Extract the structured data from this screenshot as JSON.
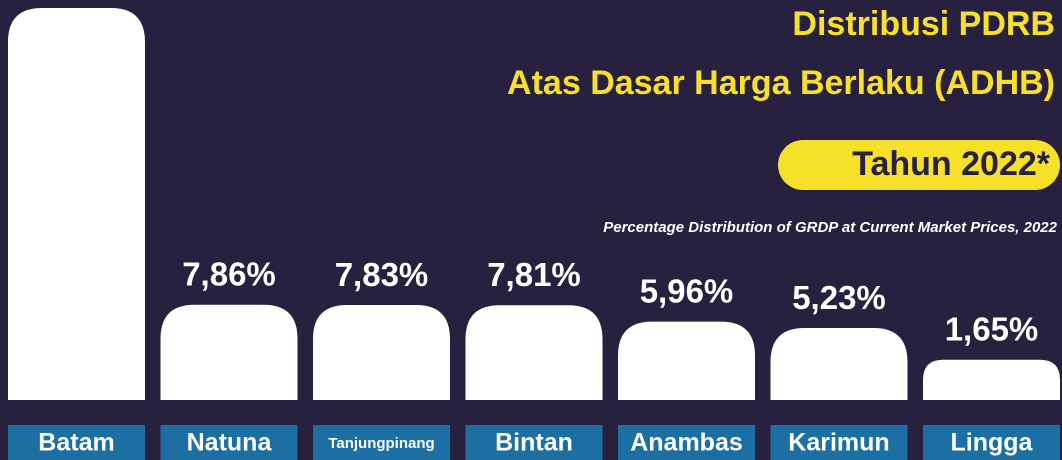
{
  "chart_data": {
    "type": "bar",
    "title": "Distribusi PDRB",
    "subtitle_line": "Atas Dasar Harga Berlaku (ADHB)",
    "year_badge": "Tahun 2022*",
    "subtitle": "Percentage Distribution of GRDP at Current Market Prices, 2022",
    "categories": [
      "Batam",
      "Natuna",
      "Tanjungpinang",
      "Bintan",
      "Anambas",
      "Karimun",
      "Lingga"
    ],
    "values": [
      41.4,
      7.86,
      7.83,
      7.81,
      5.96,
      5.23,
      1.65
    ],
    "value_labels": [
      null,
      "7,86%",
      "7,83%",
      "7,81%",
      "5,96%",
      "5,23%",
      "1,65%"
    ],
    "color": "#ffffff",
    "label_box_color": "#1c6fa3",
    "ylim": [
      -2.9,
      41.4
    ]
  }
}
